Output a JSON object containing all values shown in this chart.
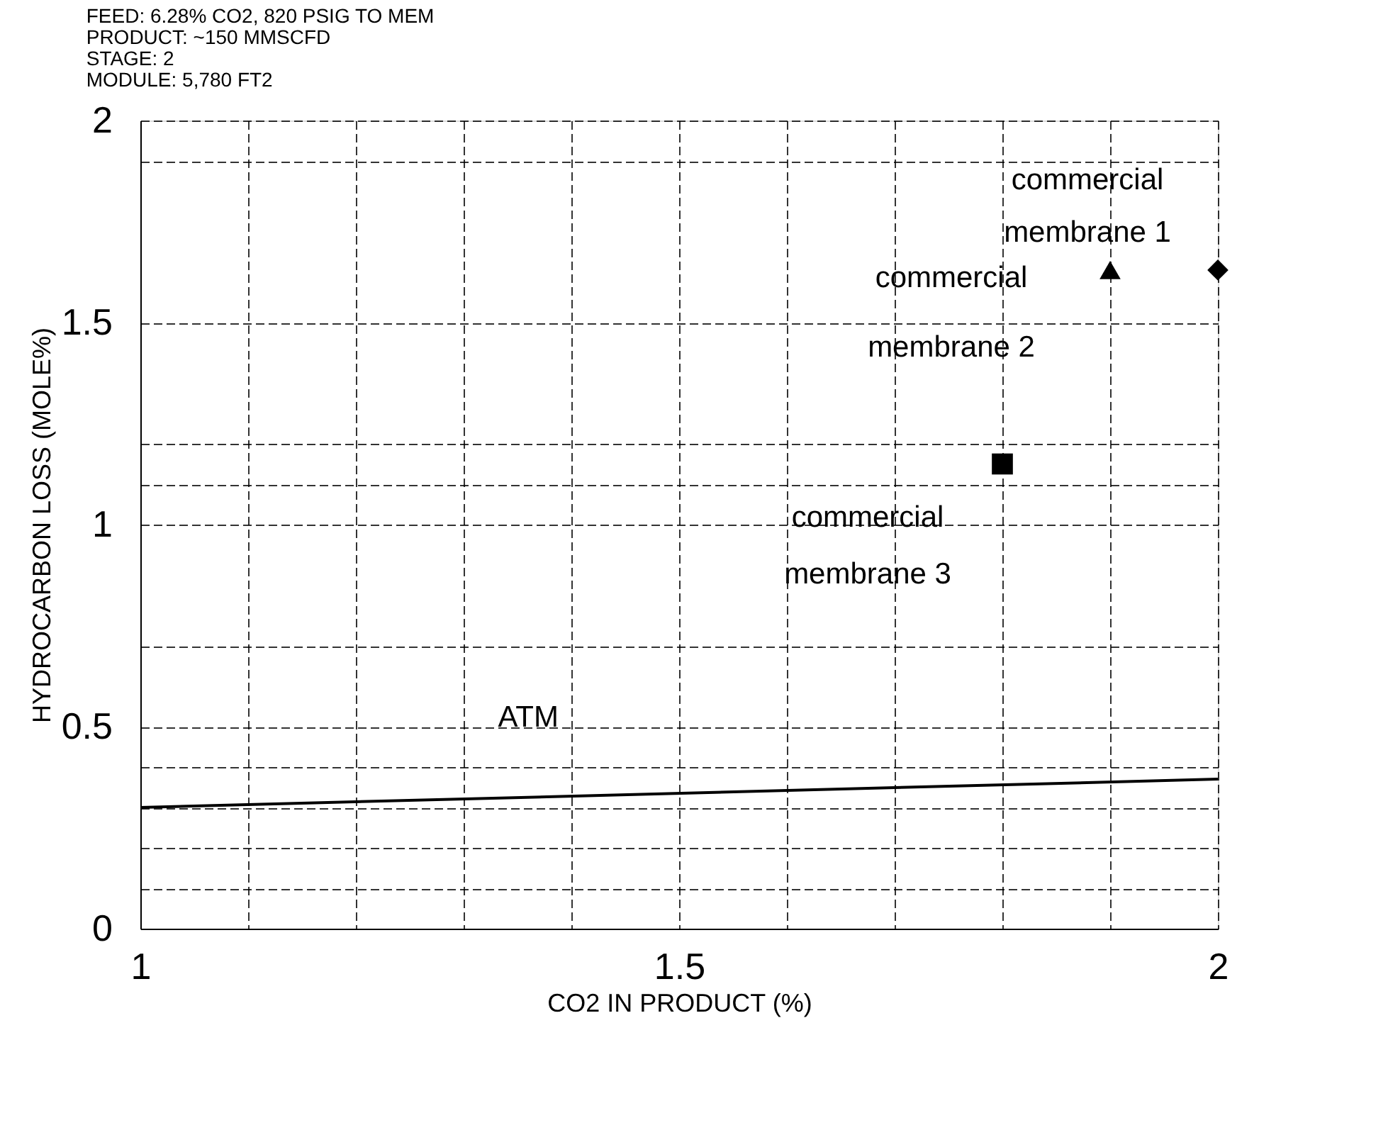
{
  "chart_data": {
    "type": "scatter",
    "annotations": [
      "FEED: 6.28% CO2, 820 PSIG TO MEM",
      "PRODUCT: ~150 MMSCFD",
      "STAGE: 2",
      "MODULE: 5,780 FT2"
    ],
    "xlabel": "CO2 IN PRODUCT (%)",
    "ylabel": "HYDROCARBON LOSS (MOLE%)",
    "xlim": [
      1,
      2
    ],
    "ylim": [
      0,
      2
    ],
    "xticks": [
      1,
      {
        "value": 1.1,
        "label": null
      },
      {
        "value": 1.2,
        "label": null
      },
      {
        "value": 1.3,
        "label": null
      },
      {
        "value": 1.4,
        "label": null
      },
      1.5,
      {
        "value": 1.6,
        "label": null
      },
      {
        "value": 1.7,
        "label": null
      },
      {
        "value": 1.8,
        "label": null
      },
      {
        "value": 1.9,
        "label": null
      },
      2
    ],
    "yticks": [
      0,
      {
        "value": 0.1,
        "label": null
      },
      {
        "value": 0.2,
        "label": null
      },
      {
        "value": 0.3,
        "label": null
      },
      {
        "value": 0.4,
        "label": null
      },
      0.5,
      {
        "value": 0.7,
        "label": null
      },
      1,
      {
        "value": 1.1,
        "label": null
      },
      {
        "value": 1.2,
        "label": null
      },
      1.5,
      {
        "value": 1.9,
        "label": null
      },
      2
    ],
    "grid": true,
    "legend": false,
    "series": [
      {
        "name": "commercial membrane 1",
        "type": "scatter",
        "marker": "diamond",
        "color": "#000000",
        "x": [
          2.0
        ],
        "values": [
          1.63
        ]
      },
      {
        "name": "commercial membrane 2",
        "type": "scatter",
        "marker": "triangle",
        "color": "#000000",
        "x": [
          1.9
        ],
        "values": [
          1.63
        ]
      },
      {
        "name": "commercial membrane 3",
        "type": "scatter",
        "marker": "square",
        "color": "#000000",
        "x": [
          1.8
        ],
        "values": [
          1.15
        ]
      },
      {
        "name": "ATM",
        "type": "line",
        "marker": "none",
        "line_style": "solid",
        "color": "#000000",
        "x": [
          1,
          2
        ],
        "values": [
          0.3,
          0.37
        ]
      }
    ]
  }
}
